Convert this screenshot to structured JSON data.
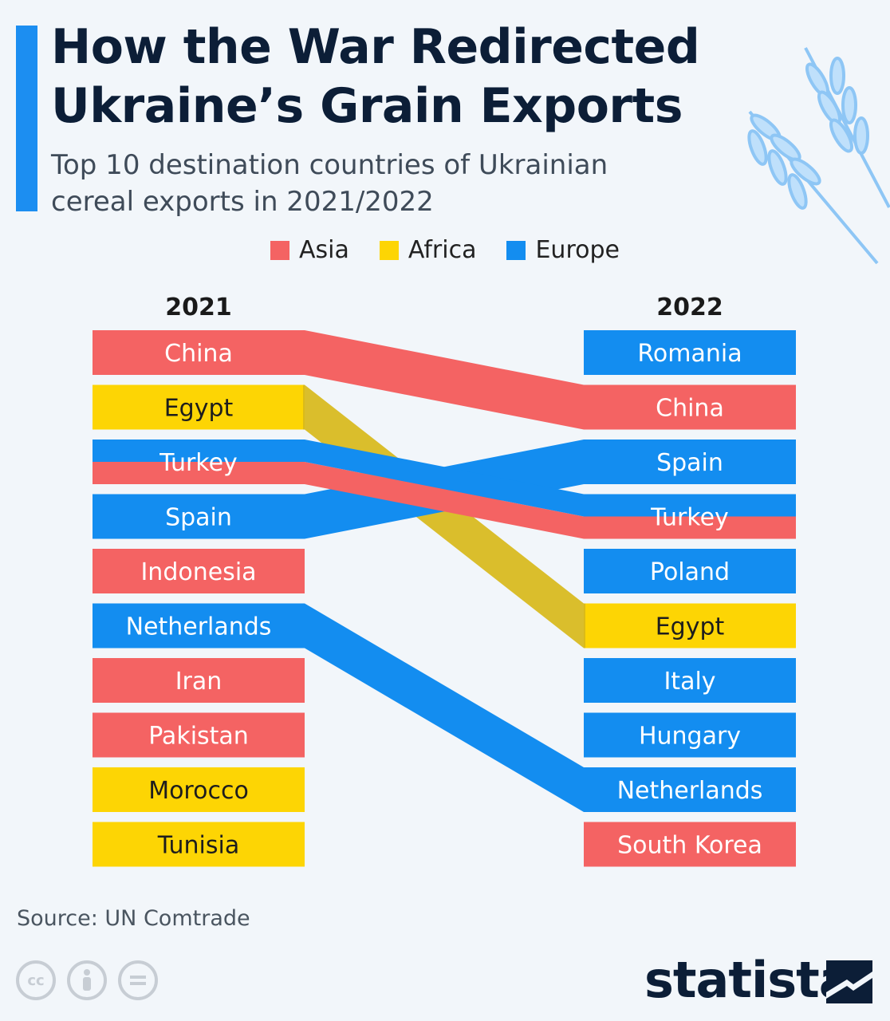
{
  "header": {
    "title": "How the War Redirected Ukraine’s Grain Exports",
    "subtitle": "Top 10 destination countries of Ukrainian cereal exports in 2021/2022"
  },
  "colors": {
    "accent": "#1c8ef1",
    "asia": "#f46363",
    "africa": "#fdd504",
    "europe": "#138df0",
    "title": "#0c1e37"
  },
  "legend": [
    {
      "label": "Asia",
      "color": "#f46363"
    },
    {
      "label": "Africa",
      "color": "#fdd504"
    },
    {
      "label": "Europe",
      "color": "#138df0"
    }
  ],
  "chart_data": {
    "type": "bump",
    "columns": [
      "2021",
      "2022"
    ],
    "rank_2021": [
      {
        "country": "China",
        "region": "Asia"
      },
      {
        "country": "Egypt",
        "region": "Africa"
      },
      {
        "country": "Turkey",
        "region": "Asia"
      },
      {
        "country": "Spain",
        "region": "Europe"
      },
      {
        "country": "Indonesia",
        "region": "Asia"
      },
      {
        "country": "Netherlands",
        "region": "Europe"
      },
      {
        "country": "Iran",
        "region": "Asia"
      },
      {
        "country": "Pakistan",
        "region": "Asia"
      },
      {
        "country": "Morocco",
        "region": "Africa"
      },
      {
        "country": "Tunisia",
        "region": "Africa"
      }
    ],
    "rank_2022": [
      {
        "country": "Romania",
        "region": "Europe"
      },
      {
        "country": "China",
        "region": "Asia"
      },
      {
        "country": "Spain",
        "region": "Europe"
      },
      {
        "country": "Turkey",
        "region": "Asia"
      },
      {
        "country": "Poland",
        "region": "Europe"
      },
      {
        "country": "Egypt",
        "region": "Africa"
      },
      {
        "country": "Italy",
        "region": "Europe"
      },
      {
        "country": "Hungary",
        "region": "Europe"
      },
      {
        "country": "Netherlands",
        "region": "Europe"
      },
      {
        "country": "South Korea",
        "region": "Asia"
      }
    ],
    "flows": [
      {
        "country": "China",
        "from_rank": 1,
        "to_rank": 2,
        "region": "Asia"
      },
      {
        "country": "Egypt",
        "from_rank": 2,
        "to_rank": 6,
        "region": "Africa"
      },
      {
        "country": "Turkey",
        "from_rank": 3,
        "to_rank": 4,
        "region": "Asia"
      },
      {
        "country": "Spain",
        "from_rank": 4,
        "to_rank": 3,
        "region": "Europe"
      },
      {
        "country": "Netherlands",
        "from_rank": 6,
        "to_rank": 9,
        "region": "Europe"
      }
    ]
  },
  "footer": {
    "source": "Source: UN Comtrade",
    "brand": "statista",
    "license_icons": [
      "cc-icon",
      "attribution-icon",
      "no-derivatives-icon"
    ]
  }
}
